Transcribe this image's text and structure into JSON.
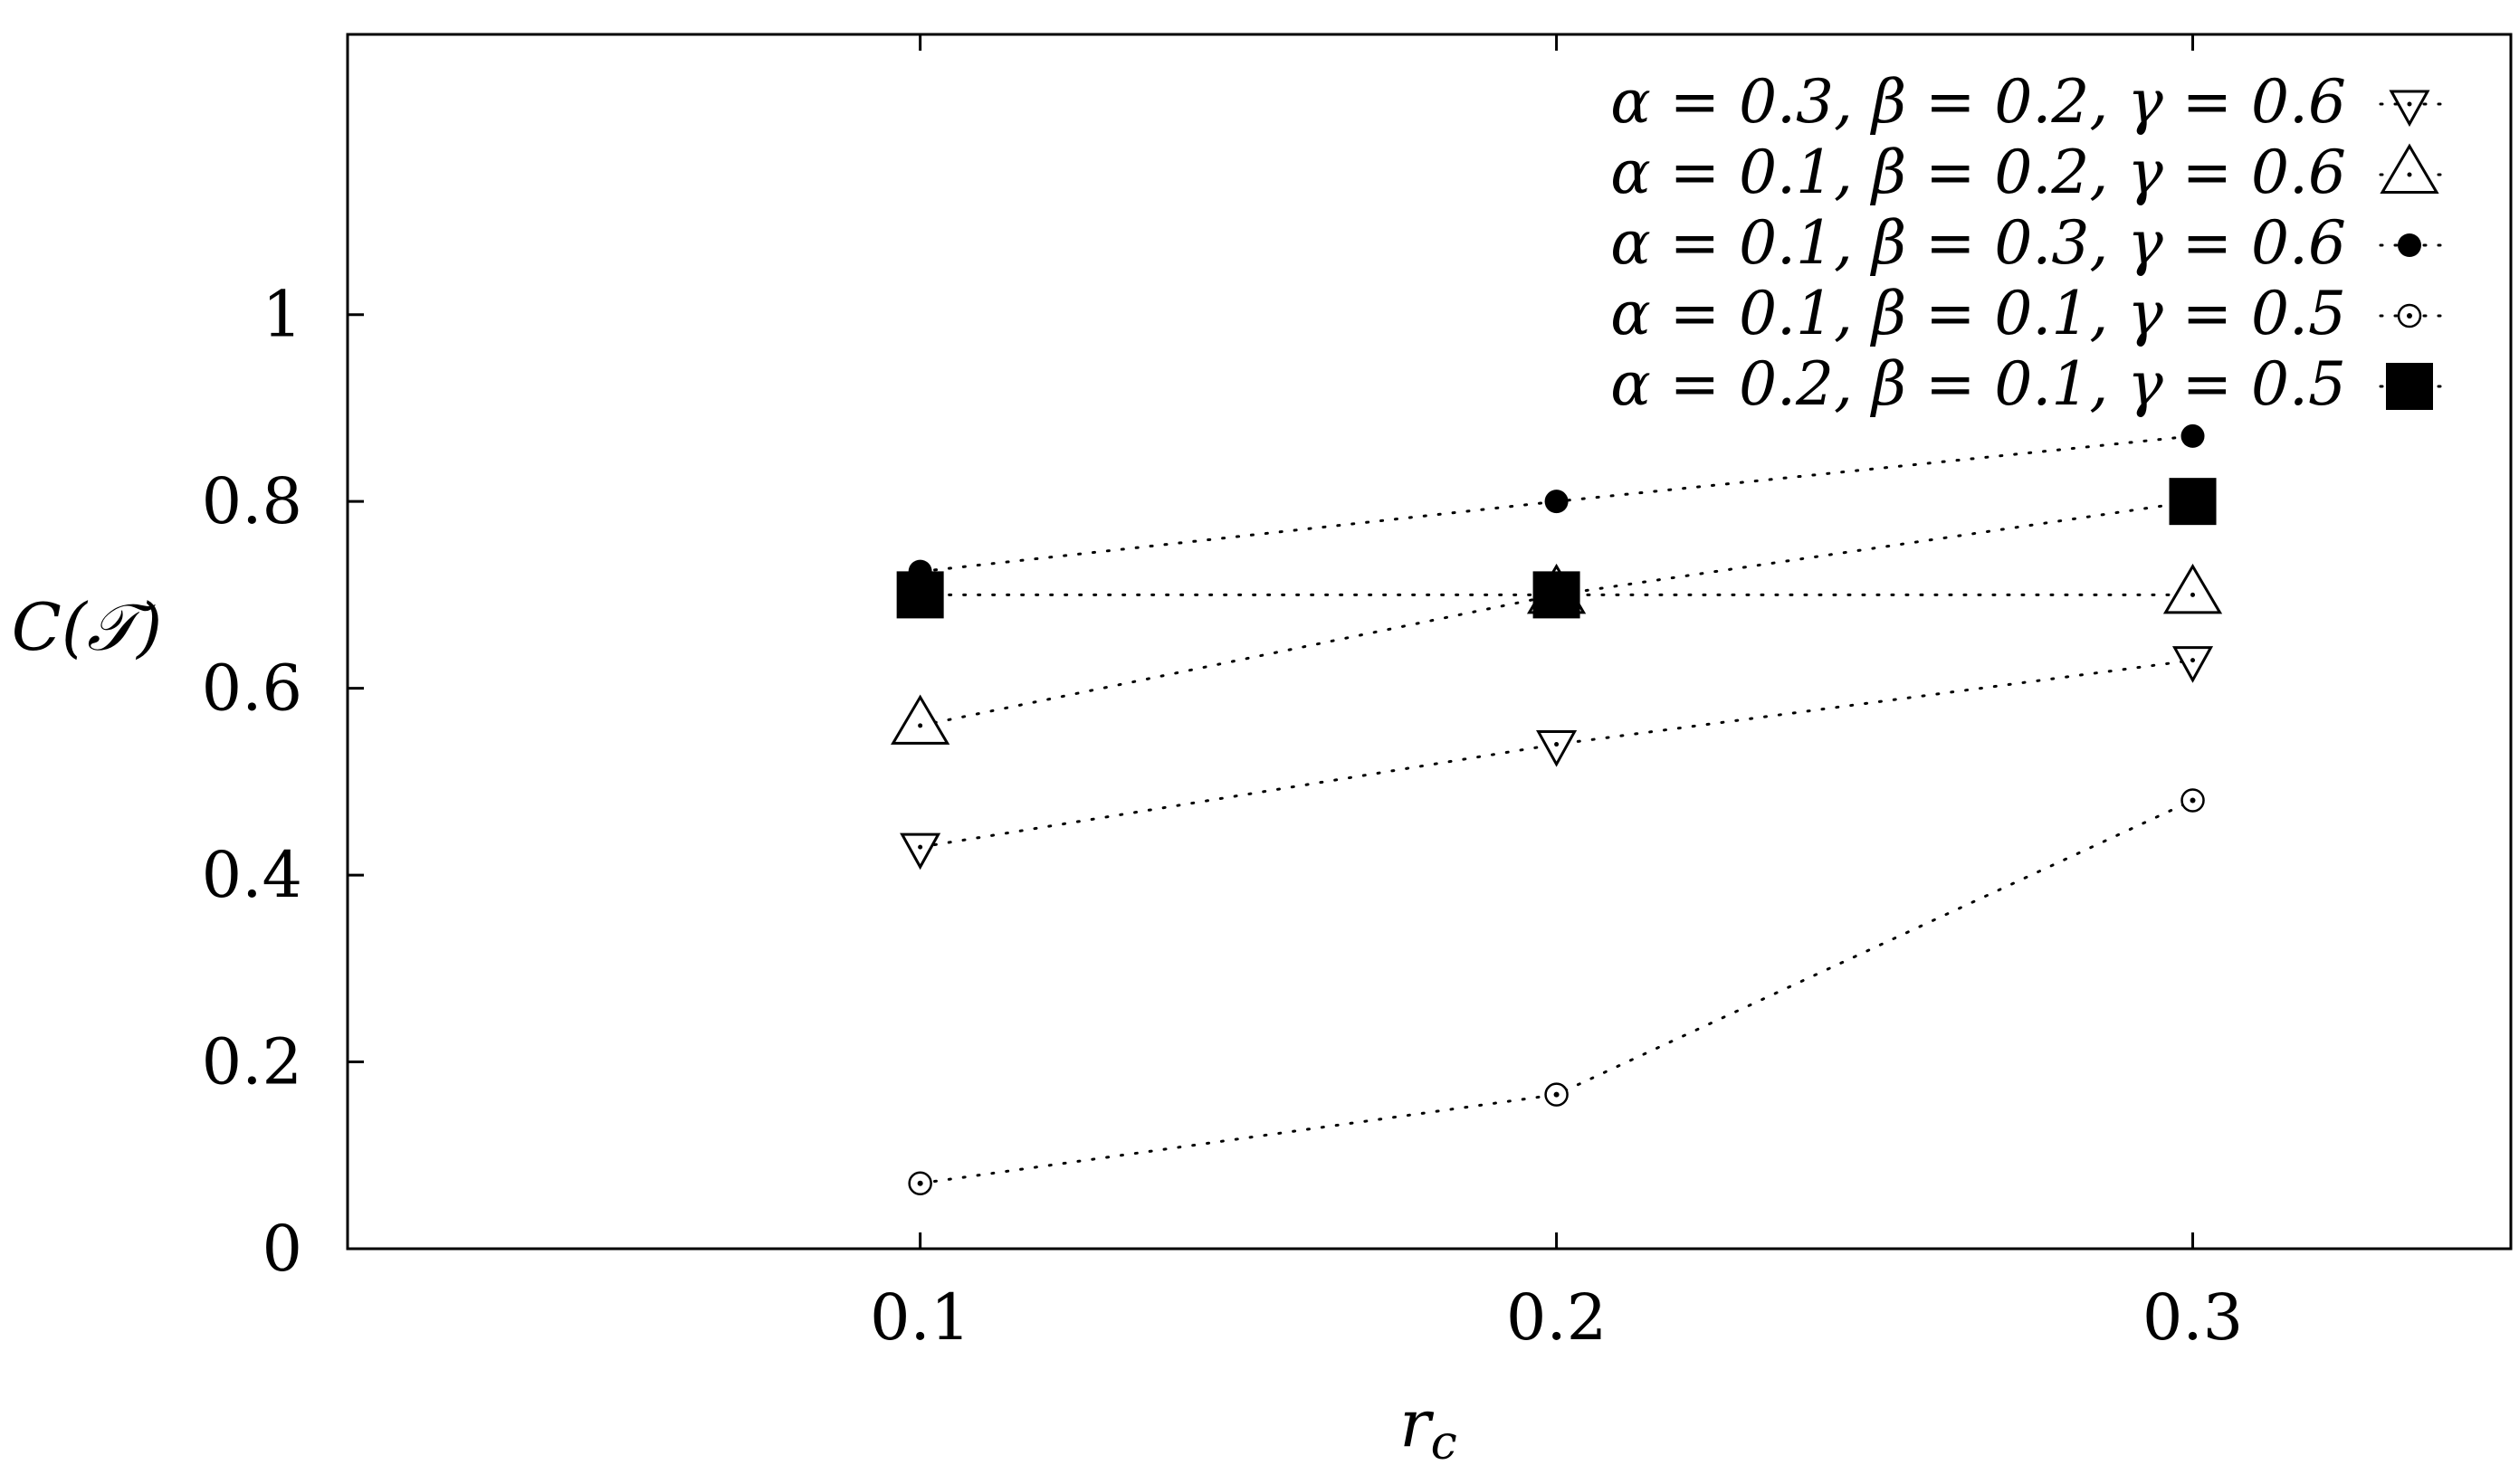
{
  "chart_data": {
    "type": "scatter",
    "title": "",
    "xlabel": "r_c",
    "ylabel": "C(𝒯)",
    "xlim": [
      0.01,
      0.35
    ],
    "ylim": [
      0,
      1.3
    ],
    "xticks": [
      0.1,
      0.2,
      0.3
    ],
    "yticks": [
      0,
      0.2,
      0.4,
      0.6,
      0.8,
      1
    ],
    "xtick_labels": [
      "0.1",
      "0.2",
      "0.3"
    ],
    "ytick_labels": [
      "0",
      "0.2",
      "0.4",
      "0.6",
      "0.8",
      "1"
    ],
    "grid": false,
    "legend_position": "top-right",
    "line_style": "dotted",
    "series": [
      {
        "name": "α = 0.3, β = 0.2, γ = 0.6",
        "marker": "triangle-down-open",
        "x": [
          0.1,
          0.2,
          0.3
        ],
        "y": [
          0.43,
          0.54,
          0.63
        ]
      },
      {
        "name": "α = 0.1, β = 0.2, γ = 0.6",
        "marker": "triangle-up-open",
        "x": [
          0.1,
          0.2,
          0.3
        ],
        "y": [
          0.56,
          0.7,
          0.7
        ]
      },
      {
        "name": "α = 0.1, β = 0.3, γ = 0.6",
        "marker": "circle-filled",
        "x": [
          0.1,
          0.2,
          0.3
        ],
        "y": [
          0.725,
          0.8,
          0.87
        ]
      },
      {
        "name": "α = 0.1, β = 0.1, γ = 0.5",
        "marker": "circle-open-dot",
        "x": [
          0.1,
          0.2,
          0.3
        ],
        "y": [
          0.07,
          0.165,
          0.48
        ]
      },
      {
        "name": "α = 0.2, β = 0.1, γ = 0.5",
        "marker": "square-filled",
        "x": [
          0.1,
          0.2,
          0.3
        ],
        "y": [
          0.7,
          0.7,
          0.8
        ]
      }
    ]
  }
}
